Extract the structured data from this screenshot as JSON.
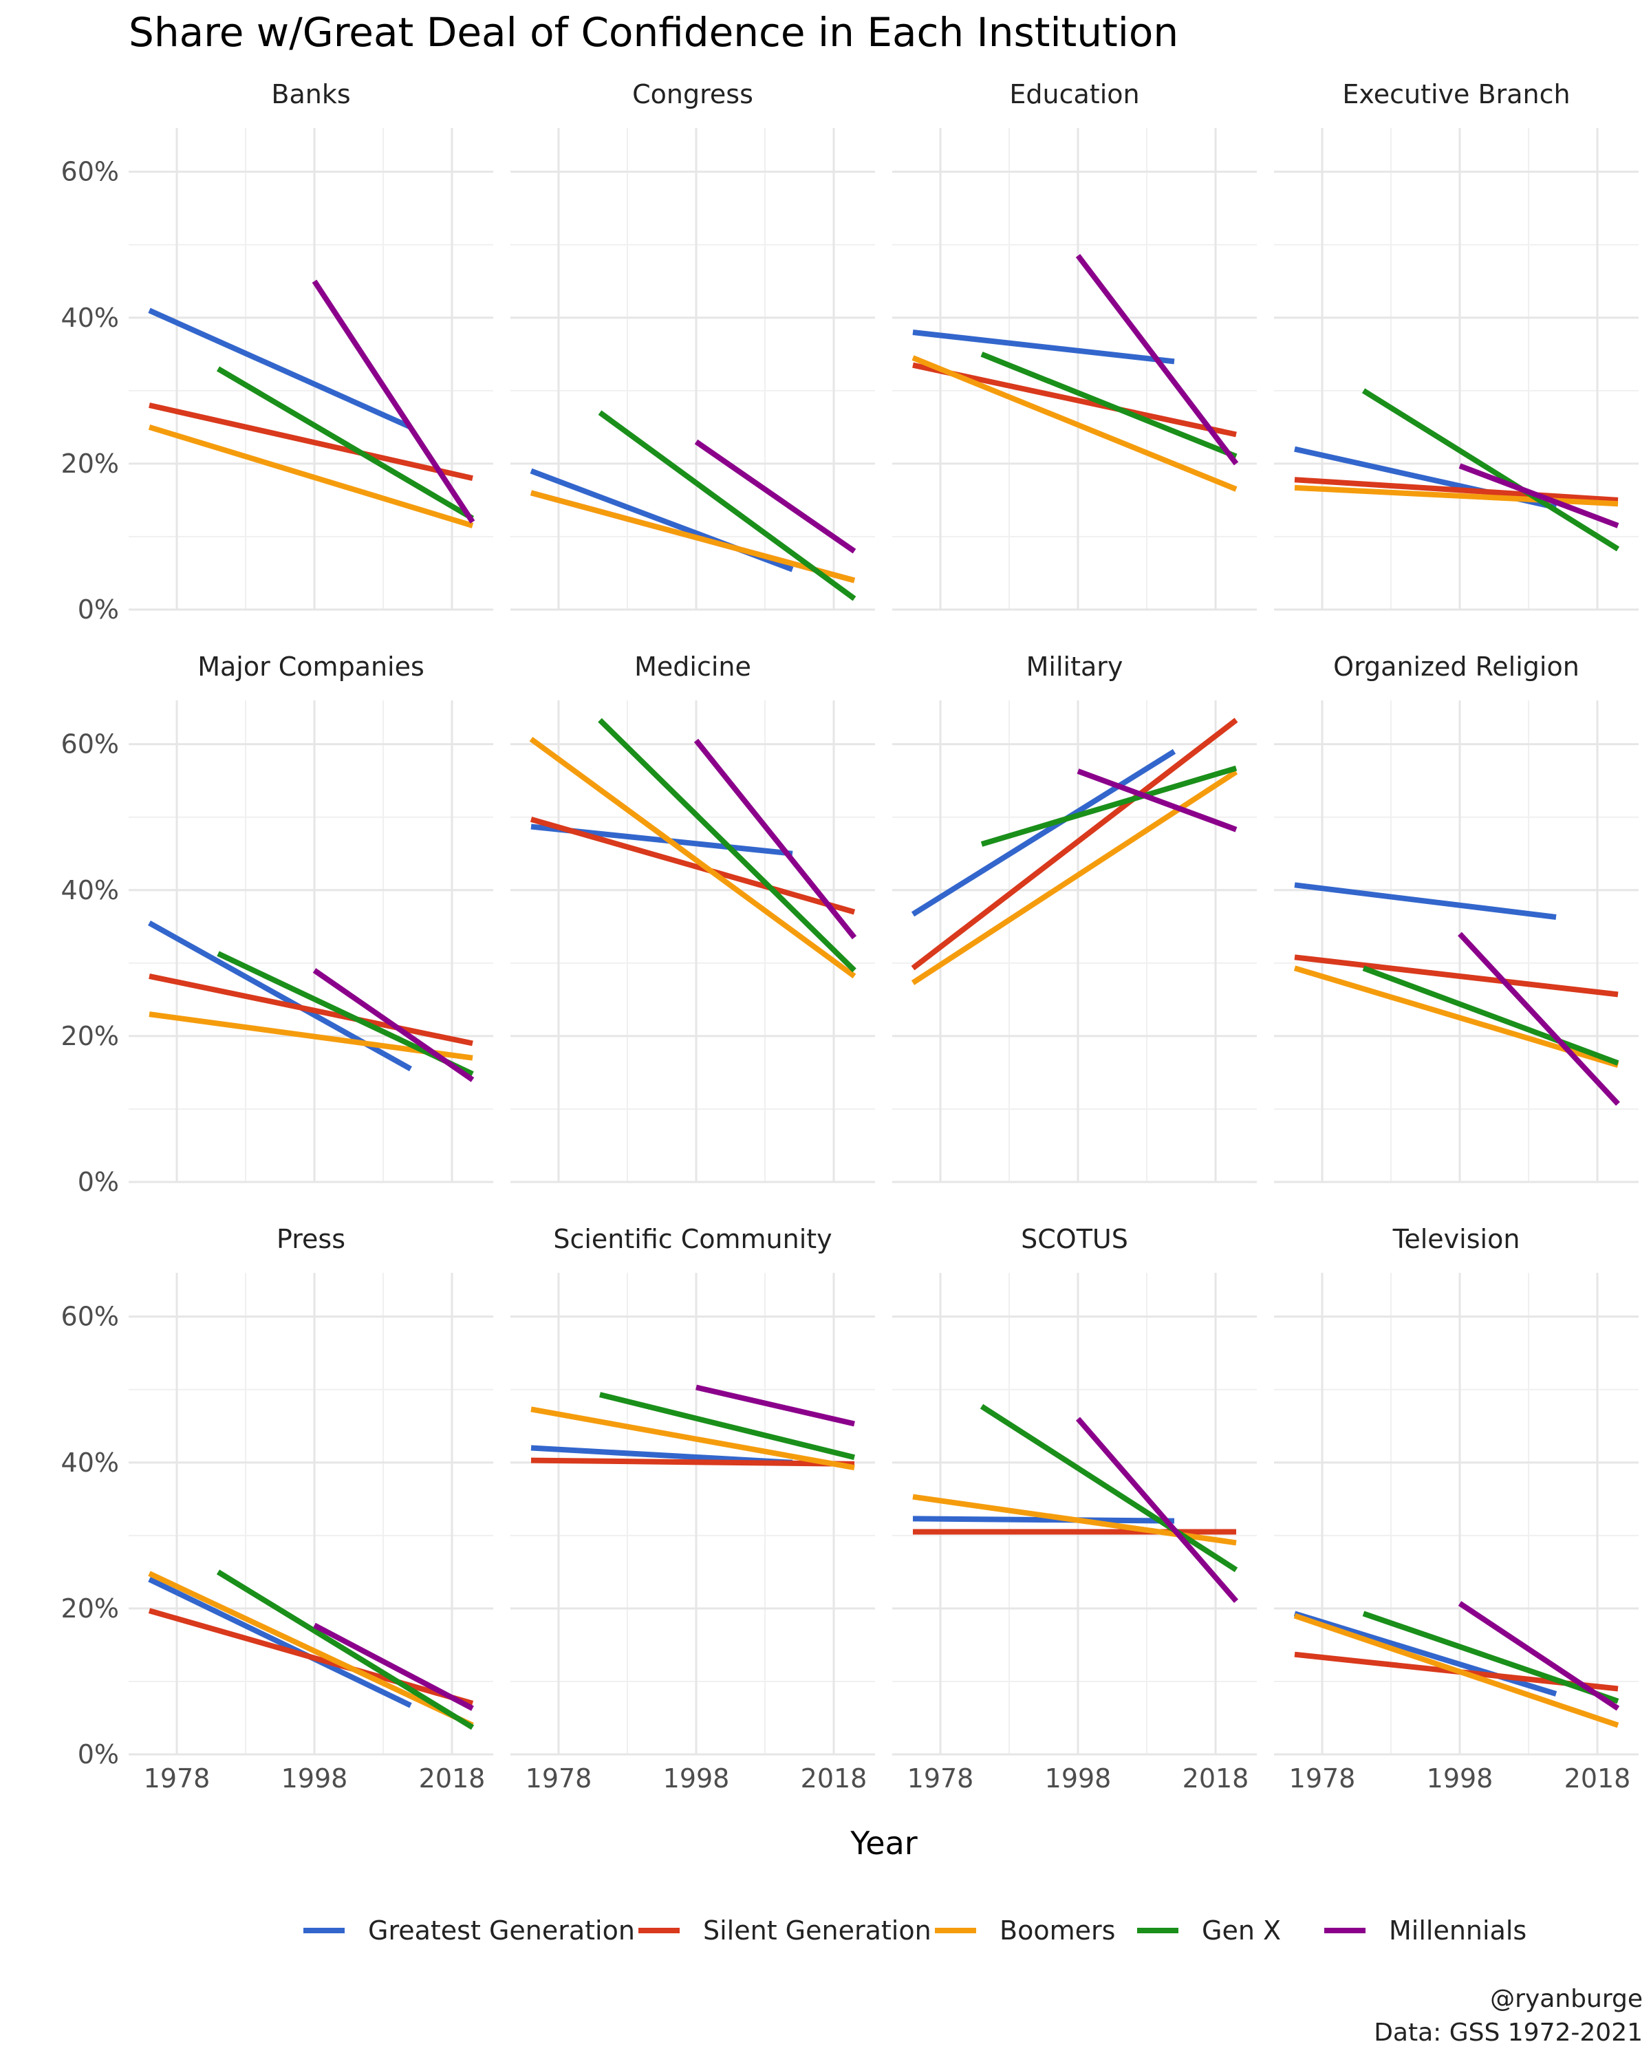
{
  "chart_data": {
    "type": "line",
    "title": "Share w/Great Deal of Confidence in Each Institution",
    "xlabel": "Year",
    "ylabel": "",
    "x_ticks": [
      1978,
      1998,
      2018
    ],
    "x_range": [
      1971,
      2024
    ],
    "ylim": [
      0,
      0.66
    ],
    "y_ticks": [
      0,
      0.2,
      0.4,
      0.6
    ],
    "y_tick_labels": [
      "0%",
      "20%",
      "40%",
      "60%"
    ],
    "grid": true,
    "legend_position": "bottom",
    "series_names": [
      "Greatest Generation",
      "Silent Generation",
      "Boomers",
      "Gen X",
      "Millennials"
    ],
    "colors": {
      "Greatest Generation": "#3366cc",
      "Silent Generation": "#d9391c",
      "Boomers": "#f59c0d",
      "Gen X": "#1a8f1a",
      "Millennials": "#8b008b"
    },
    "facets": [
      {
        "name": "Banks",
        "lines": [
          {
            "series": "Greatest Generation",
            "x": [
              1974,
              2012
            ],
            "y": [
              0.41,
              0.25
            ]
          },
          {
            "series": "Silent Generation",
            "x": [
              1974,
              2021
            ],
            "y": [
              0.28,
              0.18
            ]
          },
          {
            "series": "Boomers",
            "x": [
              1974,
              2021
            ],
            "y": [
              0.25,
              0.115
            ]
          },
          {
            "series": "Gen X",
            "x": [
              1984,
              2021
            ],
            "y": [
              0.33,
              0.125
            ]
          },
          {
            "series": "Millennials",
            "x": [
              1998,
              2021
            ],
            "y": [
              0.45,
              0.12
            ]
          }
        ]
      },
      {
        "name": "Congress",
        "lines": [
          {
            "series": "Greatest Generation",
            "x": [
              1974,
              2012
            ],
            "y": [
              0.19,
              0.055
            ]
          },
          {
            "series": "Silent Generation",
            "x": [
              1974,
              2021
            ],
            "y": [
              0.16,
              0.04
            ]
          },
          {
            "series": "Boomers",
            "x": [
              1974,
              2021
            ],
            "y": [
              0.16,
              0.04
            ]
          },
          {
            "series": "Gen X",
            "x": [
              1984,
              2021
            ],
            "y": [
              0.27,
              0.015
            ]
          },
          {
            "series": "Millennials",
            "x": [
              1998,
              2021
            ],
            "y": [
              0.23,
              0.08
            ]
          }
        ]
      },
      {
        "name": "Education",
        "lines": [
          {
            "series": "Greatest Generation",
            "x": [
              1974,
              2012
            ],
            "y": [
              0.38,
              0.34
            ]
          },
          {
            "series": "Silent Generation",
            "x": [
              1974,
              2021
            ],
            "y": [
              0.335,
              0.24
            ]
          },
          {
            "series": "Boomers",
            "x": [
              1974,
              2021
            ],
            "y": [
              0.345,
              0.165
            ]
          },
          {
            "series": "Gen X",
            "x": [
              1984,
              2021
            ],
            "y": [
              0.35,
              0.21
            ]
          },
          {
            "series": "Millennials",
            "x": [
              1998,
              2021
            ],
            "y": [
              0.485,
              0.2
            ]
          }
        ]
      },
      {
        "name": "Executive Branch",
        "lines": [
          {
            "series": "Greatest Generation",
            "x": [
              1974,
              2012
            ],
            "y": [
              0.22,
              0.14
            ]
          },
          {
            "series": "Silent Generation",
            "x": [
              1974,
              2021
            ],
            "y": [
              0.178,
              0.15
            ]
          },
          {
            "series": "Boomers",
            "x": [
              1974,
              2021
            ],
            "y": [
              0.167,
              0.145
            ]
          },
          {
            "series": "Gen X",
            "x": [
              1984,
              2021
            ],
            "y": [
              0.3,
              0.083
            ]
          },
          {
            "series": "Millennials",
            "x": [
              1998,
              2021
            ],
            "y": [
              0.197,
              0.115
            ]
          }
        ]
      },
      {
        "name": "Major Companies",
        "lines": [
          {
            "series": "Greatest Generation",
            "x": [
              1974,
              2012
            ],
            "y": [
              0.355,
              0.155
            ]
          },
          {
            "series": "Silent Generation",
            "x": [
              1974,
              2021
            ],
            "y": [
              0.282,
              0.19
            ]
          },
          {
            "series": "Boomers",
            "x": [
              1974,
              2021
            ],
            "y": [
              0.23,
              0.17
            ]
          },
          {
            "series": "Gen X",
            "x": [
              1984,
              2021
            ],
            "y": [
              0.313,
              0.148
            ]
          },
          {
            "series": "Millennials",
            "x": [
              1998,
              2021
            ],
            "y": [
              0.29,
              0.14
            ]
          }
        ]
      },
      {
        "name": "Medicine",
        "lines": [
          {
            "series": "Greatest Generation",
            "x": [
              1974,
              2012
            ],
            "y": [
              0.487,
              0.45
            ]
          },
          {
            "series": "Silent Generation",
            "x": [
              1974,
              2021
            ],
            "y": [
              0.497,
              0.37
            ]
          },
          {
            "series": "Boomers",
            "x": [
              1974,
              2021
            ],
            "y": [
              0.607,
              0.282
            ]
          },
          {
            "series": "Gen X",
            "x": [
              1984,
              2021
            ],
            "y": [
              0.633,
              0.29
            ]
          },
          {
            "series": "Millennials",
            "x": [
              1998,
              2021
            ],
            "y": [
              0.605,
              0.335
            ]
          }
        ]
      },
      {
        "name": "Military",
        "lines": [
          {
            "series": "Greatest Generation",
            "x": [
              1974,
              2012
            ],
            "y": [
              0.367,
              0.59
            ]
          },
          {
            "series": "Silent Generation",
            "x": [
              1974,
              2021
            ],
            "y": [
              0.293,
              0.633
            ]
          },
          {
            "series": "Boomers",
            "x": [
              1974,
              2021
            ],
            "y": [
              0.273,
              0.562
            ]
          },
          {
            "series": "Gen X",
            "x": [
              1984,
              2021
            ],
            "y": [
              0.463,
              0.567
            ]
          },
          {
            "series": "Millennials",
            "x": [
              1998,
              2021
            ],
            "y": [
              0.563,
              0.483
            ]
          }
        ]
      },
      {
        "name": "Organized Religion",
        "lines": [
          {
            "series": "Greatest Generation",
            "x": [
              1974,
              2012
            ],
            "y": [
              0.407,
              0.363
            ]
          },
          {
            "series": "Silent Generation",
            "x": [
              1974,
              2021
            ],
            "y": [
              0.308,
              0.257
            ]
          },
          {
            "series": "Boomers",
            "x": [
              1974,
              2021
            ],
            "y": [
              0.293,
              0.16
            ]
          },
          {
            "series": "Gen X",
            "x": [
              1984,
              2021
            ],
            "y": [
              0.293,
              0.163
            ]
          },
          {
            "series": "Millennials",
            "x": [
              1998,
              2021
            ],
            "y": [
              0.34,
              0.107
            ]
          }
        ]
      },
      {
        "name": "Press",
        "lines": [
          {
            "series": "Greatest Generation",
            "x": [
              1974,
              2012
            ],
            "y": [
              0.24,
              0.067
            ]
          },
          {
            "series": "Silent Generation",
            "x": [
              1974,
              2021
            ],
            "y": [
              0.197,
              0.07
            ]
          },
          {
            "series": "Boomers",
            "x": [
              1974,
              2021
            ],
            "y": [
              0.248,
              0.04
            ]
          },
          {
            "series": "Gen X",
            "x": [
              1984,
              2021
            ],
            "y": [
              0.25,
              0.037
            ]
          },
          {
            "series": "Millennials",
            "x": [
              1998,
              2021
            ],
            "y": [
              0.177,
              0.063
            ]
          }
        ]
      },
      {
        "name": "Scientific Community",
        "lines": [
          {
            "series": "Greatest Generation",
            "x": [
              1974,
              2012
            ],
            "y": [
              0.42,
              0.4
            ]
          },
          {
            "series": "Silent Generation",
            "x": [
              1974,
              2021
            ],
            "y": [
              0.403,
              0.398
            ]
          },
          {
            "series": "Boomers",
            "x": [
              1974,
              2021
            ],
            "y": [
              0.473,
              0.393
            ]
          },
          {
            "series": "Gen X",
            "x": [
              1984,
              2021
            ],
            "y": [
              0.493,
              0.407
            ]
          },
          {
            "series": "Millennials",
            "x": [
              1998,
              2021
            ],
            "y": [
              0.503,
              0.453
            ]
          }
        ]
      },
      {
        "name": "SCOTUS",
        "lines": [
          {
            "series": "Greatest Generation",
            "x": [
              1974,
              2012
            ],
            "y": [
              0.323,
              0.32
            ]
          },
          {
            "series": "Silent Generation",
            "x": [
              1974,
              2021
            ],
            "y": [
              0.305,
              0.305
            ]
          },
          {
            "series": "Boomers",
            "x": [
              1974,
              2021
            ],
            "y": [
              0.353,
              0.29
            ]
          },
          {
            "series": "Gen X",
            "x": [
              1984,
              2021
            ],
            "y": [
              0.477,
              0.253
            ]
          },
          {
            "series": "Millennials",
            "x": [
              1998,
              2021
            ],
            "y": [
              0.46,
              0.21
            ]
          }
        ]
      },
      {
        "name": "Television",
        "lines": [
          {
            "series": "Greatest Generation",
            "x": [
              1974,
              2012
            ],
            "y": [
              0.193,
              0.083
            ]
          },
          {
            "series": "Silent Generation",
            "x": [
              1974,
              2021
            ],
            "y": [
              0.137,
              0.09
            ]
          },
          {
            "series": "Boomers",
            "x": [
              1974,
              2021
            ],
            "y": [
              0.19,
              0.04
            ]
          },
          {
            "series": "Gen X",
            "x": [
              1984,
              2021
            ],
            "y": [
              0.193,
              0.073
            ]
          },
          {
            "series": "Millennials",
            "x": [
              1998,
              2021
            ],
            "y": [
              0.207,
              0.063
            ]
          }
        ]
      }
    ]
  },
  "caption": {
    "handle": "@ryanburge",
    "source": "Data: GSS 1972-2021"
  }
}
